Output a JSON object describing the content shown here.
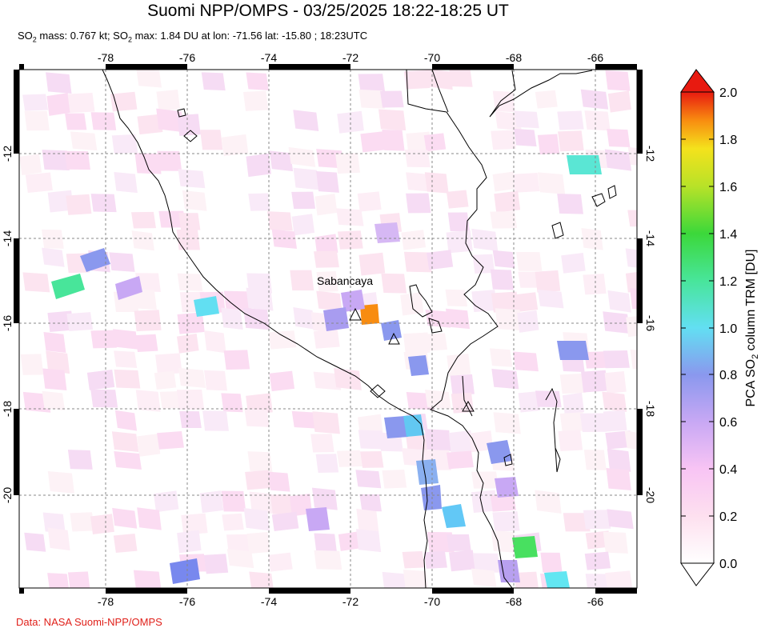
{
  "header": {
    "title": "Suomi NPP/OMPS - 03/25/2025 18:22-18:25 UT",
    "subtitle_prefix": "SO",
    "subtitle_sub": "2",
    "subtitle_mid": " mass: 0.767 kt; SO",
    "subtitle_sub2": "2",
    "subtitle_rest": " max: 1.84 DU at lon: -71.56 lat: -15.80 ; 18:23UTC"
  },
  "map": {
    "lon_labels": [
      "-78",
      "-76",
      "-74",
      "-72",
      "-70",
      "-68",
      "-66"
    ],
    "lat_labels": [
      "-12",
      "-14",
      "-16",
      "-18",
      "-20"
    ],
    "volcano_label": "Sabancaya"
  },
  "colorbar": {
    "ticks": [
      "0.0",
      "0.2",
      "0.4",
      "0.6",
      "0.8",
      "1.0",
      "1.2",
      "1.4",
      "1.6",
      "1.8",
      "2.0"
    ],
    "label_pre": "PCA SO",
    "label_sub": "2",
    "label_post": " column TRM [DU]"
  },
  "footer": {
    "credit": "Data: NASA Suomi-NPP/OMPS"
  }
}
